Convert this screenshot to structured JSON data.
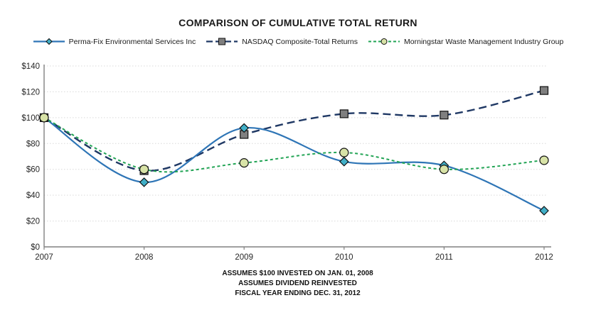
{
  "title": "COMPARISON OF CUMULATIVE TOTAL RETURN",
  "footer": {
    "line1": "ASSUMES $100 INVESTED ON JAN. 01, 2008",
    "line2": "ASSUMES DIVIDEND REINVESTED",
    "line3": "FISCAL YEAR ENDING DEC. 31, 2012"
  },
  "axes": {
    "y_tick_labels": [
      "$0",
      "$20",
      "$40",
      "$60",
      "$80",
      "$100",
      "$120",
      "$140"
    ],
    "x_tick_labels": [
      "2007",
      "2008",
      "2009",
      "2010",
      "2011",
      "2012"
    ]
  },
  "colors": {
    "grid": "#d9d9d9",
    "axis": "#808080",
    "text": "#262626"
  },
  "chart_data": {
    "type": "line",
    "title": "COMPARISON OF CUMULATIVE TOTAL RETURN",
    "x": [
      2007,
      2008,
      2009,
      2010,
      2011,
      2012
    ],
    "series": [
      {
        "name": "Perma-Fix Environmental Services Inc",
        "values": [
          100,
          50,
          92,
          66,
          63,
          28
        ],
        "color": "#2E75B6",
        "marker": "diamond",
        "marker_fill": "#41AFC7",
        "line_style": "solid"
      },
      {
        "name": "NASDAQ Composite-Total Returns",
        "values": [
          100,
          59,
          87,
          103,
          102,
          121
        ],
        "color": "#1F3864",
        "marker": "square",
        "marker_fill": "#7F7F7F",
        "line_style": "dashed"
      },
      {
        "name": "Morningstar Waste Management Industry Group",
        "values": [
          100,
          60,
          65,
          73,
          60,
          67
        ],
        "color": "#22A455",
        "marker": "circle",
        "marker_fill": "#D8E3A7",
        "line_style": "dotted"
      }
    ],
    "ylim": [
      0,
      140
    ],
    "y_tick_step": 20,
    "y_tick_prefix": "$",
    "grid": "horizontal-dotted",
    "legend_position": "top",
    "smoothed_lines": true
  }
}
